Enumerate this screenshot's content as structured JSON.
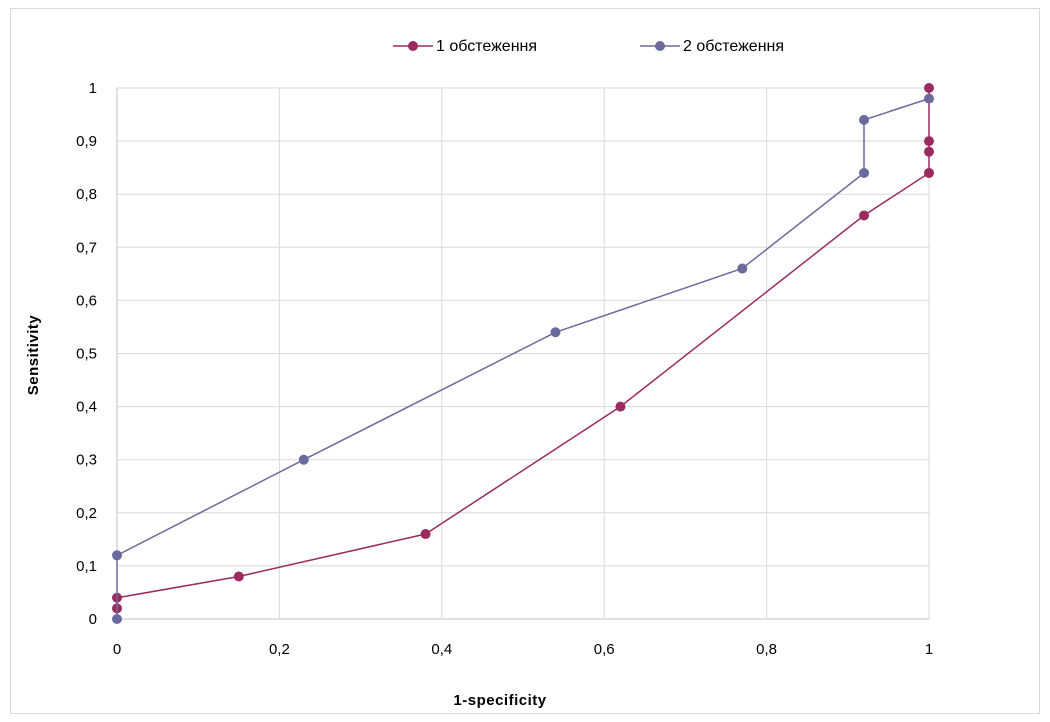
{
  "chart_data": {
    "type": "line",
    "title": "",
    "xlabel": "1-specificity",
    "ylabel": "Sensitivity",
    "xlim": [
      0,
      1
    ],
    "ylim": [
      0,
      1
    ],
    "x_ticks": [
      "0",
      "0,2",
      "0,4",
      "0,6",
      "0,8",
      "1"
    ],
    "y_ticks": [
      "0",
      "0,1",
      "0,2",
      "0,3",
      "0,4",
      "0,5",
      "0,6",
      "0,7",
      "0,8",
      "0,9",
      "1"
    ],
    "grid": true,
    "legend_position": "top",
    "series": [
      {
        "name": "1 обстеження",
        "color": "#9B2B5E",
        "points": [
          [
            0,
            0.02
          ],
          [
            0,
            0.04
          ],
          [
            0.15,
            0.08
          ],
          [
            0.38,
            0.16
          ],
          [
            0.62,
            0.4
          ],
          [
            0.92,
            0.76
          ],
          [
            1,
            0.84
          ],
          [
            1,
            0.88
          ],
          [
            1,
            0.9
          ],
          [
            1,
            1.0
          ]
        ]
      },
      {
        "name": "2 обстеження",
        "color": "#6A6A9E",
        "points": [
          [
            0,
            0
          ],
          [
            0,
            0.12
          ],
          [
            0.23,
            0.3
          ],
          [
            0.54,
            0.54
          ],
          [
            0.77,
            0.66
          ],
          [
            0.92,
            0.84
          ],
          [
            0.92,
            0.94
          ],
          [
            1,
            0.98
          ]
        ]
      }
    ]
  }
}
